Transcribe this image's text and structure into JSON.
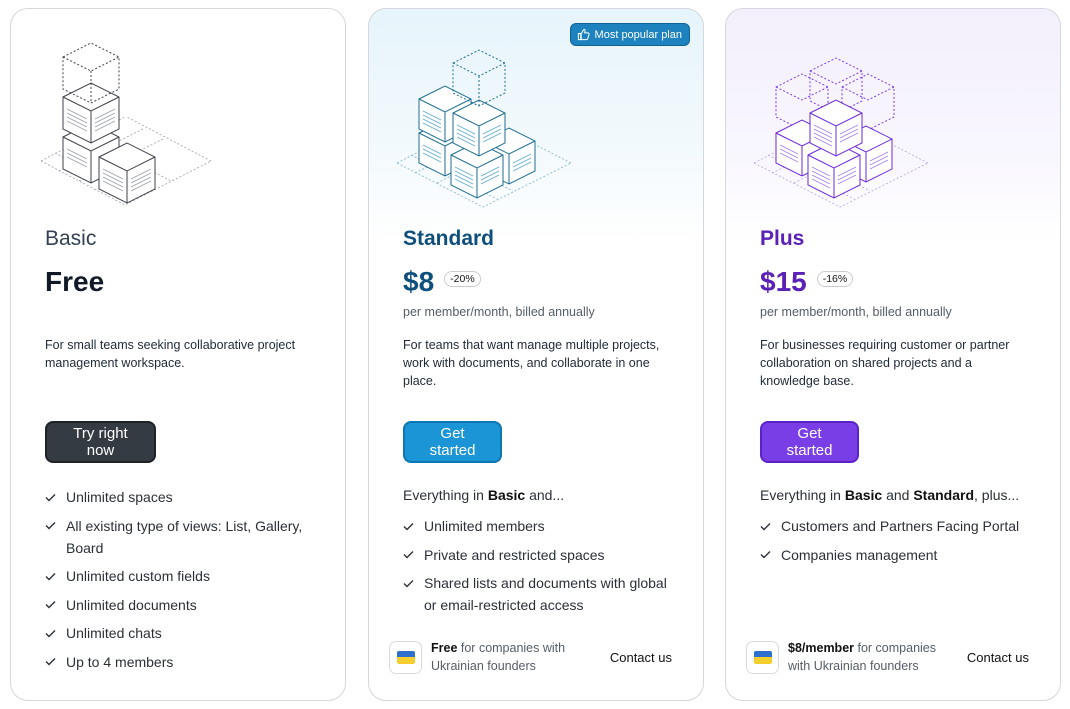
{
  "badge": {
    "label": "Most popular plan",
    "icon": "thumbs-up-icon"
  },
  "plans": {
    "basic": {
      "name": "Basic",
      "price": "Free",
      "description": "For small teams seeking collaborative project management workspace.",
      "cta": "Try right now",
      "features": [
        "Unlimited spaces",
        "All existing type of views: List, Gallery, Board",
        "Unlimited custom fields",
        "Unlimited documents",
        "Unlimited chats",
        "Up to 4 members"
      ]
    },
    "standard": {
      "name": "Standard",
      "price": "$8",
      "discount": "-20%",
      "billing": "per member/month, billed annually",
      "description": "For teams that want manage multiple projects, work with documents, and collaborate in one place.",
      "cta": "Get started",
      "intro_prefix": "Everything in ",
      "intro_bold1": "Basic",
      "intro_suffix": " and...",
      "features": [
        "Unlimited members",
        "Private and restricted spaces",
        "Shared lists and documents with global or email-restricted access"
      ],
      "footer_bold": "Free",
      "footer_rest": " for companies with Ukrainian founders",
      "contact": "Contact us"
    },
    "plus": {
      "name": "Plus",
      "price": "$15",
      "discount": "-16%",
      "billing": "per member/month, billed annually",
      "description": "For businesses requiring customer or partner collaboration on shared projects and a knowledge base.",
      "cta": "Get started",
      "intro_prefix": "Everything in ",
      "intro_bold1": "Basic",
      "intro_mid": " and ",
      "intro_bold2": "Standard",
      "intro_suffix": ", plus...",
      "features": [
        "Customers and Partners Facing Portal",
        "Companies management"
      ],
      "footer_bold": "$8/member",
      "footer_rest": " for companies with Ukrainian founders",
      "contact": "Contact us"
    }
  },
  "colors": {
    "standard_accent": "#1b95d6",
    "plus_accent": "#7a3ee6",
    "basic_button": "#353b42"
  }
}
